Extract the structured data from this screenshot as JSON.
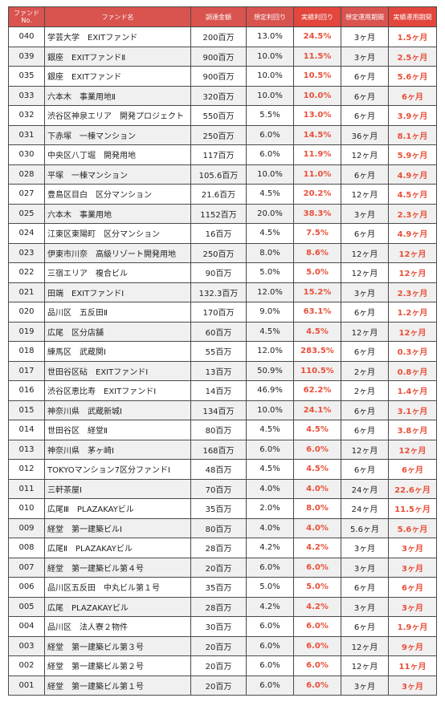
{
  "table": {
    "headers": {
      "no": "ファンド\nNo.",
      "name": "ファンド名",
      "amount": "調達金額",
      "estimated_yield": "想定利回り",
      "actual_yield": "実績利回り",
      "estimated_period": "想定運用期間",
      "actual_period": "実績運用期間"
    },
    "rows": [
      {
        "no": "040",
        "name": "学芸大学　EXITファンド",
        "amount": "200百万",
        "est_yield": "13.0%",
        "act_yield": "24.5%",
        "est_period": "3ヶ月",
        "act_period": "1.5ヶ月"
      },
      {
        "no": "039",
        "name": "銀座　EXITファンドⅡ",
        "amount": "900百万",
        "est_yield": "10.0%",
        "act_yield": "11.5%",
        "est_period": "3ヶ月",
        "act_period": "2.5ヶ月"
      },
      {
        "no": "035",
        "name": "銀座　EXITファンド",
        "amount": "900百万",
        "est_yield": "10.0%",
        "act_yield": "10.5%",
        "est_period": "6ヶ月",
        "act_period": "5.6ヶ月"
      },
      {
        "no": "033",
        "name": "六本木　事業用地Ⅱ",
        "amount": "320百万",
        "est_yield": "10.0%",
        "act_yield": "10.0%",
        "est_period": "6ヶ月",
        "act_period": "6ヶ月"
      },
      {
        "no": "032",
        "name": "渋谷区神泉エリア　開発プロジェクト",
        "amount": "550百万",
        "est_yield": "5.5%",
        "act_yield": "13.0%",
        "est_period": "6ヶ月",
        "act_period": "3.9ヶ月"
      },
      {
        "no": "031",
        "name": "下赤塚　一棟マンション",
        "amount": "250百万",
        "est_yield": "6.0%",
        "act_yield": "14.5%",
        "est_period": "36ヶ月",
        "act_period": "8.1ヶ月"
      },
      {
        "no": "030",
        "name": "中央区八丁堀　開発用地",
        "amount": "117百万",
        "est_yield": "6.0%",
        "act_yield": "11.9%",
        "est_period": "12ヶ月",
        "act_period": "5.9ヶ月"
      },
      {
        "no": "028",
        "name": "平塚　一棟マンション",
        "amount": "105.6百万",
        "est_yield": "10.0%",
        "act_yield": "11.0%",
        "est_period": "6ヶ月",
        "act_period": "4.9ヶ月"
      },
      {
        "no": "027",
        "name": "豊島区目白　区分マンション",
        "amount": "21.6百万",
        "est_yield": "4.5%",
        "act_yield": "20.2%",
        "est_period": "12ヶ月",
        "act_period": "4.5ヶ月"
      },
      {
        "no": "025",
        "name": "六本木　事業用地",
        "amount": "1152百万",
        "est_yield": "20.0%",
        "act_yield": "38.3%",
        "est_period": "3ヶ月",
        "act_period": "2.3ヶ月"
      },
      {
        "no": "024",
        "name": "江東区東陽町　区分マンション",
        "amount": "16百万",
        "est_yield": "4.5%",
        "act_yield": "7.5%",
        "est_period": "6ヶ月",
        "act_period": "4.9ヶ月"
      },
      {
        "no": "023",
        "name": "伊東市川奈　高級リゾート開発用地",
        "amount": "250百万",
        "est_yield": "8.0%",
        "act_yield": "8.6%",
        "est_period": "12ヶ月",
        "act_period": "12ヶ月"
      },
      {
        "no": "022",
        "name": "三宿エリア　複合ビル",
        "amount": "90百万",
        "est_yield": "5.0%",
        "act_yield": "5.0%",
        "est_period": "12ヶ月",
        "act_period": "12ヶ月"
      },
      {
        "no": "021",
        "name": "田端　EXITファンドⅠ",
        "amount": "132.3百万",
        "est_yield": "12.0%",
        "act_yield": "15.2%",
        "est_period": "3ヶ月",
        "act_period": "2.3ヶ月"
      },
      {
        "no": "020",
        "name": "品川区　五反田Ⅱ",
        "amount": "170百万",
        "est_yield": "9.0%",
        "act_yield": "63.1%",
        "est_period": "6ヶ月",
        "act_period": "1.2ヶ月"
      },
      {
        "no": "019",
        "name": "広尾　区分店舗",
        "amount": "60百万",
        "est_yield": "4.5%",
        "act_yield": "4.5%",
        "est_period": "12ヶ月",
        "act_period": "12ヶ月"
      },
      {
        "no": "018",
        "name": "練馬区　武蔵関Ⅰ",
        "amount": "55百万",
        "est_yield": "12.0%",
        "act_yield": "283.5%",
        "est_period": "6ヶ月",
        "act_period": "0.3ヶ月"
      },
      {
        "no": "017",
        "name": "世田谷区砧　EXITファンドⅠ",
        "amount": "13百万",
        "est_yield": "50.9%",
        "act_yield": "110.5%",
        "est_period": "2ヶ月",
        "act_period": "0.8ヶ月"
      },
      {
        "no": "016",
        "name": "渋谷区恵比寿　EXITファンドⅠ",
        "amount": "14百万",
        "est_yield": "46.9%",
        "act_yield": "62.2%",
        "est_period": "2ヶ月",
        "act_period": "1.4ヶ月"
      },
      {
        "no": "015",
        "name": "神奈川県　武蔵新城Ⅰ",
        "amount": "134百万",
        "est_yield": "10.0%",
        "act_yield": "24.1%",
        "est_period": "6ヶ月",
        "act_period": "3.1ヶ月"
      },
      {
        "no": "014",
        "name": "世田谷区　経堂Ⅱ",
        "amount": "80百万",
        "est_yield": "4.5%",
        "act_yield": "4.5%",
        "est_period": "6ヶ月",
        "act_period": "3.8ヶ月"
      },
      {
        "no": "013",
        "name": "神奈川県　茅ヶ崎Ⅰ",
        "amount": "168百万",
        "est_yield": "6.0%",
        "act_yield": "6.0%",
        "est_period": "12ヶ月",
        "act_period": "12ヶ月"
      },
      {
        "no": "012",
        "name": "TOKYOマンション7区分ファンドⅠ",
        "amount": "48百万",
        "est_yield": "4.5%",
        "act_yield": "4.5%",
        "est_period": "6ヶ月",
        "act_period": "6ヶ月"
      },
      {
        "no": "011",
        "name": "三軒茶屋Ⅰ",
        "amount": "70百万",
        "est_yield": "4.0%",
        "act_yield": "4.0%",
        "est_period": "24ヶ月",
        "act_period": "22.6ヶ月"
      },
      {
        "no": "010",
        "name": "広尾Ⅲ　PLAZAKAYビル",
        "amount": "35百万",
        "est_yield": "2.0%",
        "act_yield": "8.0%",
        "est_period": "24ヶ月",
        "act_period": "11.5ヶ月"
      },
      {
        "no": "009",
        "name": "経堂　第一建築ビルⅠ",
        "amount": "80百万",
        "est_yield": "4.0%",
        "act_yield": "4.0%",
        "est_period": "5.6ヶ月",
        "act_period": "5.6ヶ月"
      },
      {
        "no": "008",
        "name": "広尾Ⅱ　PLAZAKAYビル",
        "amount": "28百万",
        "est_yield": "4.2%",
        "act_yield": "4.2%",
        "est_period": "3ヶ月",
        "act_period": "3ヶ月"
      },
      {
        "no": "007",
        "name": "経堂　第一建築ビル第４号",
        "amount": "20百万",
        "est_yield": "6.0%",
        "act_yield": "6.0%",
        "est_period": "3ヶ月",
        "act_period": "3ヶ月"
      },
      {
        "no": "006",
        "name": "品川区五反田　中丸ビル第１号",
        "amount": "35百万",
        "est_yield": "5.0%",
        "act_yield": "5.0%",
        "est_period": "6ヶ月",
        "act_period": "6ヶ月"
      },
      {
        "no": "005",
        "name": "広尾　PLAZAKAYビル",
        "amount": "28百万",
        "est_yield": "4.2%",
        "act_yield": "4.2%",
        "est_period": "3ヶ月",
        "act_period": "3ヶ月"
      },
      {
        "no": "004",
        "name": "品川区　法人寮２物件",
        "amount": "30百万",
        "est_yield": "6.0%",
        "act_yield": "6.0%",
        "est_period": "6ヶ月",
        "act_period": "1.9ヶ月"
      },
      {
        "no": "003",
        "name": "経堂　第一建築ビル第３号",
        "amount": "20百万",
        "est_yield": "6.0%",
        "act_yield": "6.0%",
        "est_period": "12ヶ月",
        "act_period": "9ヶ月"
      },
      {
        "no": "002",
        "name": "経堂　第一建築ビル第２号",
        "amount": "20百万",
        "est_yield": "6.0%",
        "act_yield": "6.0%",
        "est_period": "12ヶ月",
        "act_period": "11ヶ月"
      },
      {
        "no": "001",
        "name": "経堂　第一建築ビル第１号",
        "amount": "20百万",
        "est_yield": "6.0%",
        "act_yield": "6.0%",
        "est_period": "3ヶ月",
        "act_period": "3ヶ月"
      }
    ]
  },
  "colors": {
    "header_bg": "#d9534f",
    "header_text": "#ffffff",
    "accent_red": "#e8503a",
    "stripe": "#f0f0f0",
    "border": "#4a4a4a"
  }
}
